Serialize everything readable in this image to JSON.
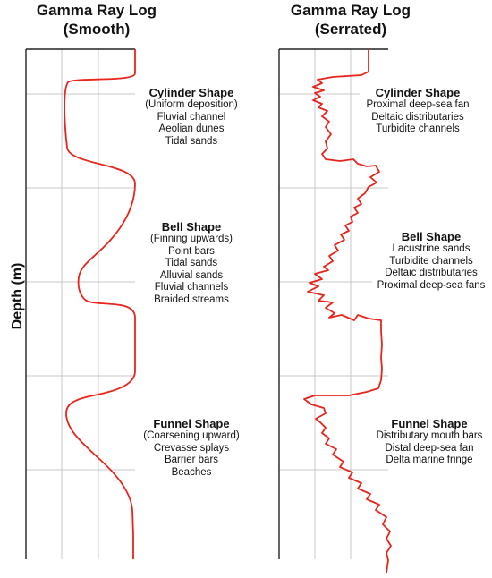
{
  "panels": [
    {
      "title_line1": "Gamma Ray Log",
      "title_line2": "(Smooth)",
      "blocks": [
        {
          "heading": "Cylinder Shape",
          "lines": [
            "(Uniform deposition)",
            "Fluvial channel",
            "Aeolian dunes",
            "Tidal sands"
          ]
        },
        {
          "heading": "Bell Shape",
          "lines": [
            "(Finning upwards)",
            "Point bars",
            "Tidal sands",
            "Alluvial sands",
            "Fluvial channels",
            "Braided streams"
          ]
        },
        {
          "heading": "Funnel Shape",
          "lines": [
            "(Coarsening upward)",
            "Crevasse splays",
            "Barrier bars",
            "Beaches"
          ]
        }
      ]
    },
    {
      "title_line1": "Gamma Ray Log",
      "title_line2": "(Serrated)",
      "blocks": [
        {
          "heading": "Cylinder Shape",
          "lines": [
            "Proximal deep-sea fan",
            "Deltaic distributaries",
            "Turbidite channels"
          ]
        },
        {
          "heading": "Bell Shape",
          "lines": [
            "Lacustrine sands",
            "Turbidite channels",
            "Deltaic distributaries",
            "Proximal deep-sea fans"
          ]
        },
        {
          "heading": "Funnel Shape",
          "lines": [
            "Distributary mouth bars",
            "Distal deep-sea fan",
            "Delta marine fringe"
          ]
        }
      ]
    }
  ],
  "y_axis_label": "Depth (m)",
  "colors": {
    "curve": "#e8241c",
    "grid": "#c8c8c8",
    "frame": "#222222",
    "text": "#111111"
  }
}
